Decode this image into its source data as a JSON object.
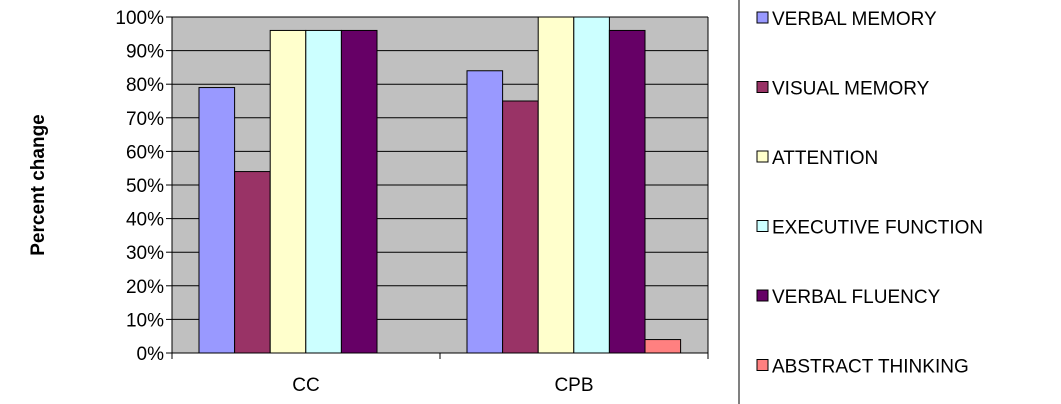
{
  "chart_data": {
    "type": "bar",
    "title": "",
    "xlabel": "",
    "ylabel": "Percent change",
    "categories": [
      "CC",
      "CPB"
    ],
    "ylim": [
      0,
      100
    ],
    "yticks": [
      "0%",
      "10%",
      "20%",
      "30%",
      "40%",
      "50%",
      "60%",
      "70%",
      "80%",
      "90%",
      "100%"
    ],
    "grid": true,
    "legend_position": "right",
    "series": [
      {
        "name": "VERBAL MEMORY",
        "color": "#9999ff",
        "values": [
          79,
          84
        ]
      },
      {
        "name": "VISUAL MEMORY",
        "color": "#993366",
        "values": [
          54,
          75
        ]
      },
      {
        "name": "ATTENTION",
        "color": "#ffffcc",
        "values": [
          96,
          100
        ]
      },
      {
        "name": "EXECUTIVE FUNCTION",
        "color": "#ccffff",
        "values": [
          96,
          100
        ]
      },
      {
        "name": "VERBAL FLUENCY",
        "color": "#660066",
        "values": [
          96,
          96
        ]
      },
      {
        "name": "ABSTRACT THINKING",
        "color": "#ff8080",
        "values": [
          0,
          4
        ]
      }
    ],
    "plot_background": "#c0c0c0"
  }
}
